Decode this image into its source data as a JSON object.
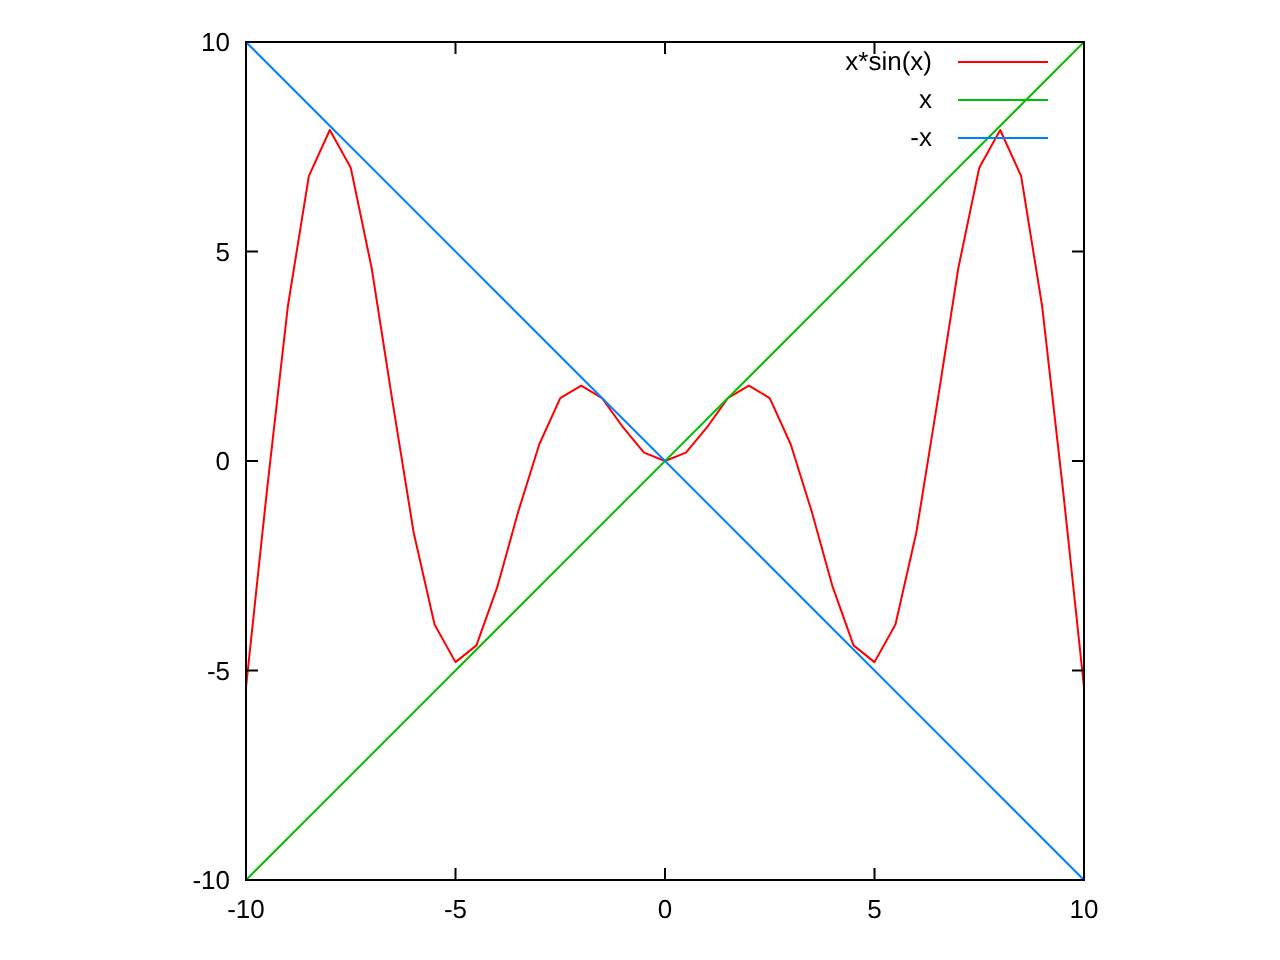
{
  "chart_data": {
    "type": "line",
    "xlim": [
      -10,
      10
    ],
    "ylim": [
      -10,
      10
    ],
    "xticks": [
      -10,
      -5,
      0,
      5,
      10
    ],
    "yticks": [
      -10,
      -5,
      0,
      5,
      10
    ],
    "grid": false,
    "legend": "top right",
    "line_style": "solid",
    "series": [
      {
        "name": "x*sin(x)",
        "color": "#ff0000",
        "x": [
          -10,
          -9.5,
          -9,
          -8.5,
          -8,
          -7.5,
          -7,
          -6.5,
          -6,
          -5.5,
          -5,
          -4.5,
          -4,
          -3.5,
          -3,
          -2.5,
          -2,
          -1.5,
          -1,
          -0.5,
          0,
          0.5,
          1,
          1.5,
          2,
          2.5,
          3,
          3.5,
          4,
          4.5,
          5,
          5.5,
          6,
          6.5,
          7,
          7.5,
          8,
          8.5,
          9,
          9.5,
          10
        ],
        "values": [
          -5.4,
          -0.7,
          3.7,
          6.8,
          7.9,
          7.0,
          4.6,
          1.4,
          -1.7,
          -3.9,
          -4.8,
          -4.4,
          -3.0,
          -1.2,
          0.4,
          1.5,
          1.8,
          1.5,
          0.8,
          0.2,
          0,
          0.2,
          0.8,
          1.5,
          1.8,
          1.5,
          0.4,
          -1.2,
          -3.0,
          -4.4,
          -4.8,
          -3.9,
          -1.7,
          1.4,
          4.6,
          7.0,
          7.9,
          6.8,
          3.7,
          -0.7,
          -5.4
        ]
      },
      {
        "name": "x",
        "color": "#00c000",
        "x": [
          -10,
          10
        ],
        "values": [
          -10,
          10
        ]
      },
      {
        "name": "-x",
        "color": "#0080ff",
        "x": [
          -10,
          10
        ],
        "values": [
          10,
          -10
        ]
      }
    ]
  }
}
